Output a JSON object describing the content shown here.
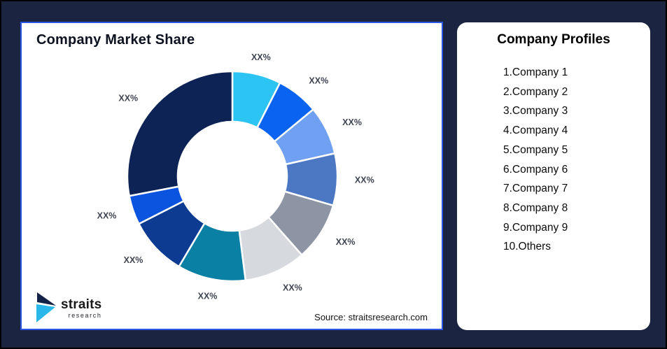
{
  "page": {
    "background_color": "#1B2541"
  },
  "chart_card": {
    "title": "Company Market Share",
    "source": "Source: straitsresearch.com",
    "border_color": "#2B55E2"
  },
  "logo": {
    "name": "straits",
    "sub": "research",
    "mark_dark_color": "#152247",
    "mark_cyan_color": "#29B7EA"
  },
  "profiles": {
    "title": "Company Profiles",
    "items": [
      "1.Company 1",
      "2.Company 2",
      "3.Company 3",
      "4.Company 4",
      "5.Company 5",
      "6.Company 6",
      "7.Company 7",
      "8.Company 8",
      "9.Company 9",
      "10.Others"
    ]
  },
  "chart_data": {
    "type": "pie",
    "subtype": "donut",
    "title": "Company Market Share",
    "value_labels_shown": "placeholders",
    "inner_radius_ratio": 0.52,
    "label_color": "#3E4450",
    "slice_gap_color": "#FFFFFF",
    "start_angle_deg": 0,
    "direction": "clockwise",
    "segments": [
      {
        "label": "XX%",
        "value": 7.5,
        "color": "#2BC4F3"
      },
      {
        "label": "XX%",
        "value": 6.5,
        "color": "#0A64F0"
      },
      {
        "label": "XX%",
        "value": 7.5,
        "color": "#6FA0F2"
      },
      {
        "label": "XX%",
        "value": 8.0,
        "color": "#4C77C2"
      },
      {
        "label": "XX%",
        "value": 9.0,
        "color": "#8D94A3"
      },
      {
        "label": "XX%",
        "value": 9.5,
        "color": "#D6D9DE"
      },
      {
        "label": "XX%",
        "value": 10.5,
        "color": "#0A80A4"
      },
      {
        "label": "XX%",
        "value": 9.0,
        "color": "#0D3B92"
      },
      {
        "label": "XX%",
        "value": 4.5,
        "color": "#0B54E0"
      },
      {
        "label": "XX%",
        "value": 28.0,
        "color": "#0E2355"
      }
    ]
  }
}
